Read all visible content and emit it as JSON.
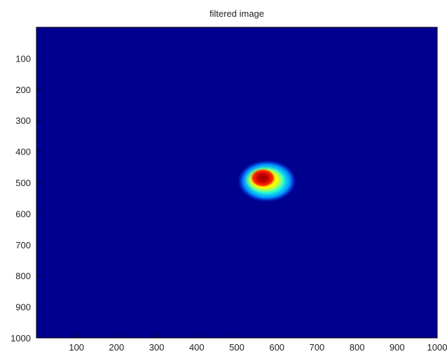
{
  "chart_data": {
    "type": "heatmap",
    "title": "filtered image",
    "xlabel": "",
    "ylabel": "",
    "x_range": [
      0,
      1000
    ],
    "y_range": [
      0,
      1000
    ],
    "y_axis_reversed": true,
    "x_ticks": [
      100,
      200,
      300,
      400,
      500,
      600,
      700,
      800,
      900,
      1000
    ],
    "y_ticks": [
      100,
      200,
      300,
      400,
      500,
      600,
      700,
      800,
      900,
      1000
    ],
    "colormap": "jet",
    "grid": false,
    "background_color": "#00008f",
    "hotspot": {
      "center_x": 575,
      "center_y": 495,
      "extent_x": [
        520,
        650
      ],
      "extent_y": [
        430,
        550
      ],
      "peak_x": 565,
      "peak_y": 485,
      "peak_level": 1.0
    }
  }
}
